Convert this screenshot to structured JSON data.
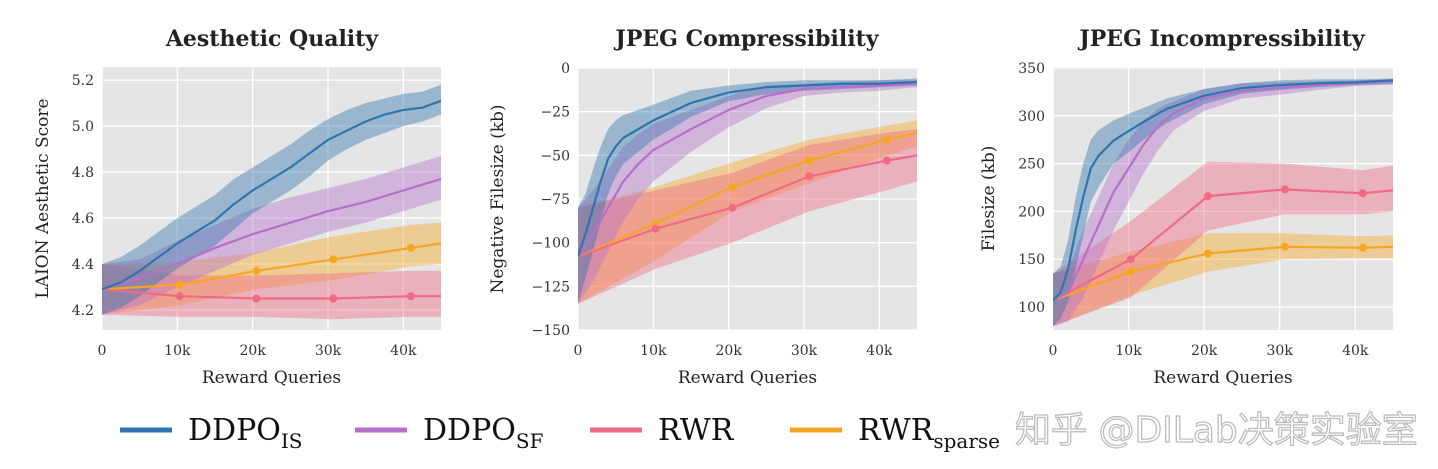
{
  "colors": {
    "DDPO_IS": "#2f75ad",
    "DDPO_SF": "#b66fcb",
    "RWR": "#f06a86",
    "RWR_sparse": "#f5a623",
    "plot_bg": "#e5e5e5",
    "grid": "#ffffff"
  },
  "legend": {
    "placement": "bottom",
    "items": [
      {
        "key": "DDPO_IS",
        "label": "DDPO",
        "subscript": "IS"
      },
      {
        "key": "DDPO_SF",
        "label": "DDPO",
        "subscript": "SF"
      },
      {
        "key": "RWR",
        "label": "RWR",
        "subscript": ""
      },
      {
        "key": "RWR_sparse",
        "label": "RWR",
        "subscript": "sparse"
      }
    ]
  },
  "watermark": "知乎 @DILab决策实验室",
  "chart_data": [
    {
      "type": "line",
      "title": "Aesthetic Quality",
      "xlabel": "Reward Queries",
      "ylabel": "LAION Aesthetic Score",
      "xlim": [
        0,
        45000
      ],
      "ylim": [
        4.113,
        5.257
      ],
      "grid": true,
      "xticks": [
        0,
        10000,
        20000,
        30000,
        40000
      ],
      "xtick_labels": [
        "0",
        "10k",
        "20k",
        "30k",
        "40k"
      ],
      "yticks": [
        4.2,
        4.4,
        4.6,
        4.8,
        5.0,
        5.2
      ],
      "ytick_labels": [
        "4.2",
        "4.4",
        "4.6",
        "4.8",
        "5.0",
        "5.2"
      ],
      "series": [
        {
          "key": "RWR_sparse",
          "markers": true,
          "x": [
            0,
            10300,
            20500,
            30700,
            41000,
            45000
          ],
          "mean": [
            4.29,
            4.31,
            4.37,
            4.42,
            4.47,
            4.49
          ],
          "lo": [
            4.18,
            4.22,
            4.29,
            4.33,
            4.39,
            4.4
          ],
          "hi": [
            4.4,
            4.41,
            4.45,
            4.52,
            4.57,
            4.58
          ]
        },
        {
          "key": "RWR",
          "markers": true,
          "x": [
            0,
            10300,
            20500,
            30700,
            41000,
            45000
          ],
          "mean": [
            4.29,
            4.26,
            4.25,
            4.25,
            4.26,
            4.26
          ],
          "lo": [
            4.18,
            4.17,
            4.17,
            4.16,
            4.17,
            4.17
          ],
          "hi": [
            4.4,
            4.35,
            4.35,
            4.36,
            4.37,
            4.37
          ]
        },
        {
          "key": "DDPO_SF",
          "markers": false,
          "x": [
            0,
            5000,
            10000,
            15000,
            20000,
            25000,
            30000,
            35000,
            40000,
            45000
          ],
          "mean": [
            4.29,
            4.34,
            4.4,
            4.47,
            4.53,
            4.58,
            4.63,
            4.67,
            4.72,
            4.77
          ],
          "lo": [
            4.18,
            4.22,
            4.3,
            4.37,
            4.44,
            4.49,
            4.54,
            4.58,
            4.63,
            4.68
          ],
          "hi": [
            4.4,
            4.42,
            4.5,
            4.57,
            4.64,
            4.69,
            4.73,
            4.77,
            4.82,
            4.87
          ]
        },
        {
          "key": "DDPO_IS",
          "markers": false,
          "x": [
            0,
            2500,
            5000,
            7500,
            10000,
            12500,
            15000,
            17500,
            20000,
            22500,
            25000,
            27500,
            30000,
            32500,
            35000,
            37500,
            40000,
            42500,
            45000
          ],
          "mean": [
            4.29,
            4.32,
            4.37,
            4.43,
            4.49,
            4.54,
            4.59,
            4.66,
            4.72,
            4.77,
            4.82,
            4.88,
            4.94,
            4.98,
            5.02,
            5.05,
            5.07,
            5.08,
            5.11
          ],
          "lo": [
            4.18,
            4.21,
            4.26,
            4.32,
            4.38,
            4.43,
            4.48,
            4.55,
            4.62,
            4.67,
            4.72,
            4.78,
            4.85,
            4.9,
            4.94,
            4.97,
            5.0,
            5.02,
            5.05
          ],
          "hi": [
            4.4,
            4.43,
            4.48,
            4.54,
            4.6,
            4.65,
            4.7,
            4.77,
            4.82,
            4.87,
            4.92,
            4.98,
            5.03,
            5.07,
            5.1,
            5.12,
            5.14,
            5.15,
            5.18
          ]
        }
      ]
    },
    {
      "type": "line",
      "title": "JPEG Compressibility",
      "xlabel": "Reward Queries",
      "ylabel": "Negative Filesize (kb)",
      "xlim": [
        0,
        45000
      ],
      "ylim": [
        -150,
        0
      ],
      "grid": true,
      "xticks": [
        0,
        10000,
        20000,
        30000,
        40000
      ],
      "xtick_labels": [
        "0",
        "10k",
        "20k",
        "30k",
        "40k"
      ],
      "yticks": [
        -150,
        -125,
        -100,
        -75,
        -50,
        -25,
        0
      ],
      "ytick_labels": [
        "−150",
        "−125",
        "−100",
        "−75",
        "−50",
        "−25",
        "0"
      ],
      "series": [
        {
          "key": "RWR_sparse",
          "markers": true,
          "x": [
            0,
            10300,
            20500,
            30700,
            41000,
            45000
          ],
          "mean": [
            -108,
            -89,
            -68,
            -53,
            -41,
            -37
          ],
          "lo": [
            -135,
            -110,
            -82,
            -66,
            -50,
            -45
          ],
          "hi": [
            -80,
            -68,
            -54,
            -41,
            -33,
            -30
          ]
        },
        {
          "key": "RWR",
          "markers": true,
          "x": [
            0,
            10300,
            20500,
            30700,
            41000,
            45000
          ],
          "mean": [
            -108,
            -92,
            -80,
            -62,
            -53,
            -50
          ],
          "lo": [
            -135,
            -115,
            -100,
            -82,
            -70,
            -65
          ],
          "hi": [
            -80,
            -70,
            -60,
            -44,
            -37,
            -35
          ]
        },
        {
          "key": "DDPO_SF",
          "markers": false,
          "x": [
            0,
            2000,
            4000,
            6000,
            8000,
            10000,
            15000,
            20000,
            25000,
            30000,
            35000,
            40000,
            45000
          ],
          "mean": [
            -108,
            -95,
            -80,
            -65,
            -55,
            -47,
            -35,
            -24,
            -16,
            -12,
            -11,
            -10,
            -9
          ],
          "lo": [
            -135,
            -122,
            -105,
            -88,
            -75,
            -65,
            -48,
            -34,
            -23,
            -16,
            -14,
            -13,
            -11
          ],
          "hi": [
            -80,
            -70,
            -58,
            -45,
            -38,
            -32,
            -24,
            -16,
            -10,
            -9,
            -8,
            -7,
            -7
          ]
        },
        {
          "key": "DDPO_IS",
          "markers": false,
          "x": [
            0,
            1000,
            2000,
            3000,
            4000,
            5000,
            6000,
            8000,
            10000,
            15000,
            20000,
            25000,
            30000,
            35000,
            40000,
            45000
          ],
          "mean": [
            -108,
            -95,
            -80,
            -65,
            -52,
            -45,
            -40,
            -35,
            -30,
            -20,
            -14,
            -11,
            -10,
            -9,
            -9,
            -8
          ],
          "lo": [
            -135,
            -120,
            -105,
            -88,
            -72,
            -62,
            -55,
            -48,
            -41,
            -28,
            -19,
            -15,
            -13,
            -12,
            -11,
            -10
          ],
          "hi": [
            -80,
            -72,
            -58,
            -45,
            -35,
            -30,
            -27,
            -24,
            -21,
            -13,
            -10,
            -8,
            -7,
            -7,
            -7,
            -6
          ]
        }
      ]
    },
    {
      "type": "line",
      "title": "JPEG Incompressibility",
      "xlabel": "Reward Queries",
      "ylabel": "Filesize (kb)",
      "xlim": [
        0,
        45000
      ],
      "ylim": [
        76,
        351
      ],
      "grid": true,
      "xticks": [
        0,
        10000,
        20000,
        30000,
        40000
      ],
      "xtick_labels": [
        "0",
        "10k",
        "20k",
        "30k",
        "40k"
      ],
      "yticks": [
        100,
        150,
        200,
        250,
        300,
        350
      ],
      "ytick_labels": [
        "100",
        "150",
        "200",
        "250",
        "300",
        "350"
      ],
      "series": [
        {
          "key": "RWR_sparse",
          "markers": true,
          "x": [
            0,
            10300,
            20500,
            30700,
            41000,
            45000
          ],
          "mean": [
            107,
            137,
            156,
            163,
            162,
            163
          ],
          "lo": [
            80,
            112,
            137,
            150,
            151,
            151
          ],
          "hi": [
            135,
            158,
            177,
            177,
            174,
            175
          ]
        },
        {
          "key": "RWR",
          "markers": true,
          "x": [
            0,
            10300,
            20500,
            30700,
            41000,
            45000
          ],
          "mean": [
            107,
            150,
            216,
            223,
            219,
            222
          ],
          "lo": [
            80,
            110,
            180,
            197,
            197,
            200
          ],
          "hi": [
            135,
            190,
            252,
            250,
            243,
            248
          ]
        },
        {
          "key": "DDPO_SF",
          "markers": false,
          "x": [
            0,
            2000,
            4000,
            6000,
            8000,
            10000,
            12000,
            14000,
            16000,
            20000,
            25000,
            30000,
            35000,
            40000,
            45000
          ],
          "mean": [
            107,
            115,
            150,
            185,
            220,
            245,
            270,
            290,
            303,
            318,
            326,
            329,
            332,
            334,
            336
          ],
          "lo": [
            80,
            85,
            110,
            145,
            180,
            210,
            240,
            265,
            285,
            305,
            318,
            322,
            327,
            331,
            333
          ],
          "hi": [
            135,
            140,
            180,
            215,
            250,
            275,
            295,
            308,
            315,
            328,
            334,
            335,
            336,
            337,
            338
          ]
        },
        {
          "key": "DDPO_IS",
          "markers": false,
          "x": [
            0,
            1000,
            2000,
            3000,
            4000,
            5000,
            6000,
            8000,
            10000,
            12500,
            15000,
            20000,
            25000,
            30000,
            35000,
            40000,
            45000
          ],
          "mean": [
            107,
            115,
            140,
            180,
            215,
            245,
            258,
            274,
            284,
            296,
            307,
            321,
            329,
            332,
            334,
            335,
            337
          ],
          "lo": [
            80,
            88,
            105,
            140,
            175,
            210,
            225,
            250,
            262,
            278,
            292,
            312,
            323,
            327,
            330,
            332,
            333
          ],
          "hi": [
            135,
            142,
            170,
            215,
            250,
            275,
            285,
            295,
            302,
            310,
            318,
            328,
            334,
            337,
            338,
            338,
            339
          ]
        }
      ]
    }
  ]
}
